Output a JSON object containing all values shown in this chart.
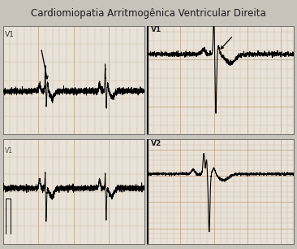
{
  "title": "Cardiomiopatia Arritmogênica Ventricular Direita",
  "title_fontsize": 8.5,
  "background_color": "#c8c4bc",
  "grid_color_minor": "#d4b8a0",
  "grid_color_major": "#c4a888",
  "panel_bg": "#e8e2d8",
  "border_color": "#606060",
  "ecg_color": "#000000",
  "label_V1_left": "V1",
  "label_V1_right": "V1",
  "label_V2_right": "V2",
  "label_fontsize": 7
}
